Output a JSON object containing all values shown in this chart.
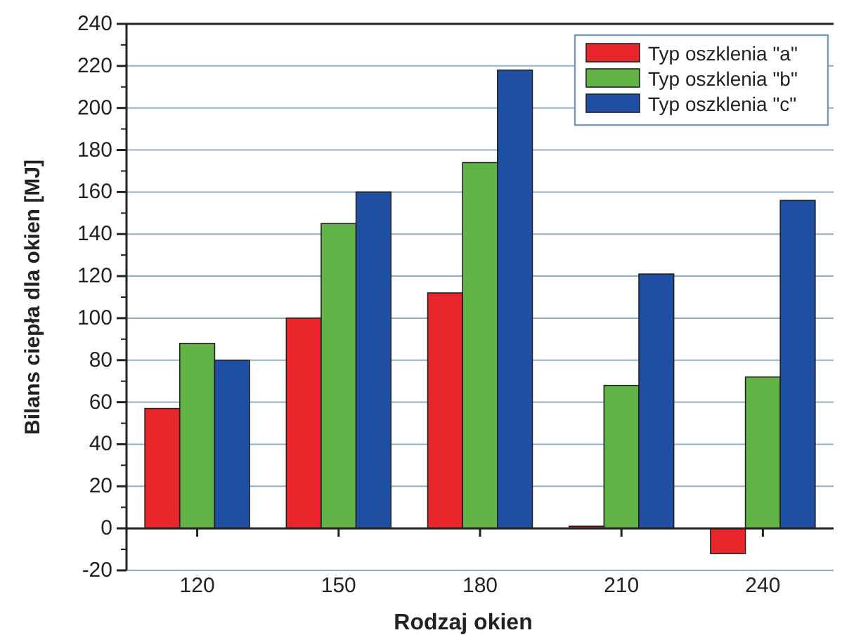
{
  "chart_data": {
    "type": "bar",
    "xlabel": "Rodzaj okien",
    "ylabel": "Bilans ciepła dla okien [MJ]",
    "categories": [
      "120",
      "150",
      "180",
      "210",
      "240"
    ],
    "series": [
      {
        "name": "Typ oszklenia \"a\"",
        "color": "#e8262b",
        "values": [
          57,
          100,
          112,
          1,
          -12
        ]
      },
      {
        "name": "Typ oszklenia \"b\"",
        "color": "#62b346",
        "values": [
          88,
          145,
          174,
          68,
          72
        ]
      },
      {
        "name": "Typ oszklenia \"c\"",
        "color": "#1f4fa3",
        "values": [
          80,
          160,
          218,
          121,
          156
        ]
      }
    ],
    "ylim": [
      -20,
      240
    ],
    "yticks": [
      -20,
      0,
      20,
      40,
      60,
      80,
      100,
      120,
      140,
      160,
      180,
      200,
      220,
      240
    ],
    "grid": "y",
    "legend": "top right"
  }
}
